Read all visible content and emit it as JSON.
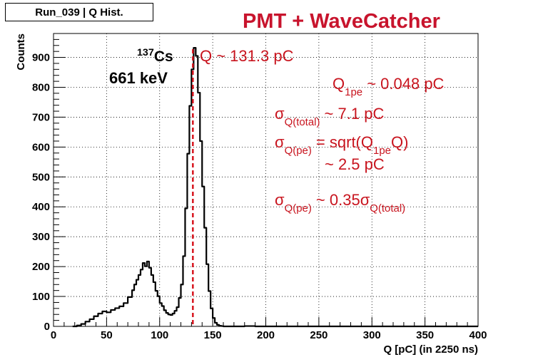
{
  "header": {
    "histogram_name": "Run_039 | Q Hist.",
    "title": "PMT + WaveCatcher"
  },
  "chart_data": {
    "type": "histogram",
    "xlabel": "Q [pC] (in 2250 ns)",
    "ylabel": "Counts",
    "xlim": [
      0,
      400
    ],
    "ylim": [
      0,
      980
    ],
    "x_ticks": [
      0,
      50,
      100,
      150,
      200,
      250,
      300,
      350,
      400
    ],
    "y_ticks": [
      0,
      100,
      200,
      300,
      400,
      500,
      600,
      700,
      800,
      900
    ],
    "grid": true,
    "series": [
      {
        "name": "Q histogram",
        "color": "#000000",
        "points": [
          [
            18,
            0
          ],
          [
            22,
            3
          ],
          [
            26,
            8
          ],
          [
            30,
            16
          ],
          [
            34,
            24
          ],
          [
            38,
            34
          ],
          [
            42,
            43
          ],
          [
            46,
            50
          ],
          [
            50,
            47
          ],
          [
            54,
            55
          ],
          [
            58,
            61
          ],
          [
            62,
            67
          ],
          [
            66,
            78
          ],
          [
            70,
            98
          ],
          [
            74,
            121
          ],
          [
            76,
            140
          ],
          [
            78,
            156
          ],
          [
            80,
            172
          ],
          [
            82,
            190
          ],
          [
            84,
            212
          ],
          [
            86,
            201
          ],
          [
            88,
            217
          ],
          [
            90,
            196
          ],
          [
            92,
            172
          ],
          [
            94,
            148
          ],
          [
            96,
            119
          ],
          [
            98,
            101
          ],
          [
            100,
            78
          ],
          [
            102,
            68
          ],
          [
            104,
            54
          ],
          [
            106,
            45
          ],
          [
            108,
            40
          ],
          [
            110,
            38
          ],
          [
            112,
            43
          ],
          [
            114,
            52
          ],
          [
            116,
            64
          ],
          [
            118,
            95
          ],
          [
            120,
            140
          ],
          [
            122,
            235
          ],
          [
            124,
            395
          ],
          [
            126,
            578
          ],
          [
            128,
            738
          ],
          [
            130,
            860
          ],
          [
            132,
            932
          ],
          [
            134,
            905
          ],
          [
            136,
            782
          ],
          [
            138,
            620
          ],
          [
            140,
            468
          ],
          [
            142,
            330
          ],
          [
            144,
            208
          ],
          [
            146,
            118
          ],
          [
            148,
            60
          ],
          [
            150,
            28
          ],
          [
            152,
            12
          ],
          [
            154,
            5
          ],
          [
            156,
            2
          ],
          [
            158,
            1
          ],
          [
            160,
            0
          ],
          [
            170,
            0
          ],
          [
            180,
            1
          ],
          [
            190,
            0
          ],
          [
            200,
            0
          ]
        ]
      }
    ],
    "peak_marker": {
      "x": 131.3,
      "color": "#d7141e",
      "style": "dashed"
    },
    "annotations": {
      "isotope_mass": "137",
      "isotope_symbol": "Cs",
      "energy": "661 keV",
      "q_peak": "Q ~ 131.3 pC",
      "q1pe_sym": "Q",
      "q1pe_sub": "1pe",
      "q1pe_val": " ~ 0.048 pC",
      "sigma_sym": "σ",
      "sigma_total_sub": "Q(total)",
      "sigma_total_val": " ~ 7.1 pC",
      "sigma_pe_sub": "Q(pe)",
      "sigma_pe_eq": " = sqrt(Q",
      "sigma_pe_q1pe_sub": "1pe",
      "sigma_pe_eq_end": "Q)",
      "sigma_pe_val": "~ 2.5 pC",
      "ratio_mid": " ~ 0.35",
      "ratio_total_sub": "Q(total)",
      "annotation_color": "#c8141e"
    }
  }
}
